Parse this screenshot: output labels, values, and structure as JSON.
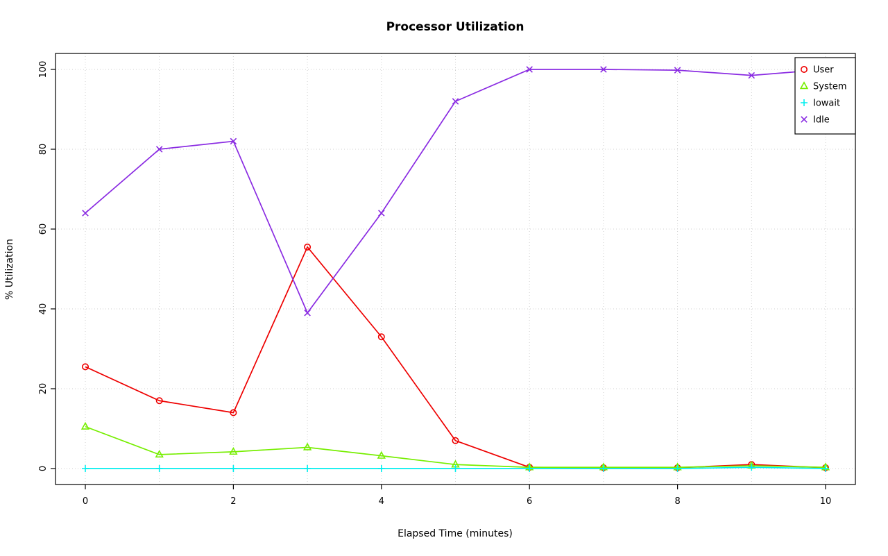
{
  "chart_data": {
    "type": "line",
    "title": "Processor Utilization",
    "xlabel": "Elapsed Time (minutes)",
    "ylabel": "% Utilization",
    "x": [
      0,
      1,
      2,
      3,
      4,
      5,
      6,
      7,
      8,
      9,
      10
    ],
    "xlim": [
      0,
      10
    ],
    "ylim": [
      0,
      100
    ],
    "xticks": [
      0,
      2,
      4,
      6,
      8,
      10
    ],
    "yticks": [
      0,
      20,
      40,
      60,
      80,
      100
    ],
    "x_gridlines": [
      0,
      1,
      2,
      3,
      4,
      5,
      6,
      7,
      8,
      9,
      10
    ],
    "grid": true,
    "legend_position": "top-right",
    "series": [
      {
        "name": "User",
        "color": "#ee0000",
        "marker": "circle",
        "values": [
          25.5,
          17,
          14,
          55.5,
          33,
          7,
          0.3,
          0.2,
          0.2,
          1,
          0.2
        ]
      },
      {
        "name": "System",
        "color": "#76ee00",
        "marker": "triangle",
        "values": [
          10.5,
          3.5,
          4.2,
          5.3,
          3.2,
          1,
          0.3,
          0.3,
          0.3,
          0.7,
          0.3
        ]
      },
      {
        "name": "Iowait",
        "color": "#00eeee",
        "marker": "plus",
        "values": [
          0,
          0,
          0,
          0,
          0,
          0,
          0,
          0,
          0,
          0.3,
          0
        ]
      },
      {
        "name": "Idle",
        "color": "#8a2be2",
        "marker": "x",
        "values": [
          64,
          80,
          82,
          39,
          64,
          92,
          100,
          100,
          99.8,
          98.5,
          100
        ]
      }
    ]
  }
}
